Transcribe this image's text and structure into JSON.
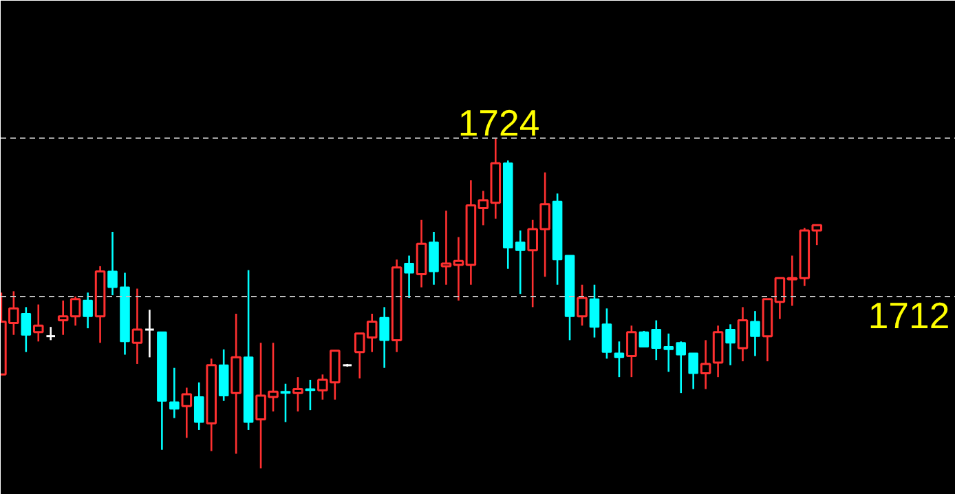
{
  "chart_data": {
    "type": "candlestick",
    "categories": [
      null,
      null,
      null,
      null,
      null,
      null,
      null,
      null,
      null,
      null,
      null,
      null,
      null,
      null,
      null,
      null,
      null,
      null,
      null,
      null,
      null,
      null,
      null,
      null,
      null,
      null,
      null,
      null,
      null,
      null,
      null,
      null,
      null,
      null,
      null,
      null,
      null,
      null,
      null,
      null,
      null,
      null,
      null,
      null,
      null,
      null,
      null,
      null,
      null,
      null,
      null,
      null,
      null,
      null,
      null,
      null,
      null,
      null,
      null,
      null,
      null,
      null,
      null,
      null,
      null,
      null,
      null
    ],
    "ohlc": [
      [
        1706.1,
        1712.3,
        1706.1,
        1710.1
      ],
      [
        1710.0,
        1712.4,
        1709.1,
        1711.1
      ],
      [
        1710.7,
        1711.2,
        1707.8,
        1709.1
      ],
      [
        1709.3,
        1711.4,
        1708.6,
        1709.8
      ],
      [
        1709.0,
        1709.7,
        1708.7,
        1709.0
      ],
      [
        1710.2,
        1711.7,
        1709.1,
        1710.5
      ],
      [
        1710.5,
        1712.0,
        1709.8,
        1711.8
      ],
      [
        1711.7,
        1712.3,
        1709.6,
        1710.5
      ],
      [
        1710.5,
        1714.3,
        1708.5,
        1713.9
      ],
      [
        1713.9,
        1716.9,
        1712.1,
        1712.7
      ],
      [
        1712.7,
        1713.8,
        1707.6,
        1708.6
      ],
      [
        1708.5,
        1712.6,
        1706.9,
        1709.5
      ],
      [
        1709.5,
        1711.0,
        1707.4,
        1709.5
      ],
      [
        1709.3,
        1709.3,
        1700.4,
        1704.1
      ],
      [
        1704.0,
        1706.6,
        1702.8,
        1703.5
      ],
      [
        1703.7,
        1705.1,
        1701.3,
        1704.6
      ],
      [
        1704.4,
        1705.5,
        1701.9,
        1702.5
      ],
      [
        1702.4,
        1707.3,
        1700.3,
        1706.8
      ],
      [
        1706.8,
        1708.0,
        1704.1,
        1704.5
      ],
      [
        1704.7,
        1710.7,
        1700.1,
        1707.4
      ],
      [
        1707.4,
        1714.0,
        1701.9,
        1702.5
      ],
      [
        1702.7,
        1708.5,
        1699.0,
        1704.5
      ],
      [
        1704.4,
        1708.5,
        1703.3,
        1704.8
      ],
      [
        1704.8,
        1705.4,
        1702.5,
        1704.7
      ],
      [
        1704.7,
        1705.9,
        1703.3,
        1705.0
      ],
      [
        1705.0,
        1705.7,
        1703.4,
        1704.9
      ],
      [
        1704.9,
        1706.1,
        1704.2,
        1705.7
      ],
      [
        1705.5,
        1707.9,
        1704.2,
        1707.9
      ],
      [
        1706.8,
        1706.9,
        1706.7,
        1706.8
      ],
      [
        1707.8,
        1709.2,
        1705.8,
        1709.2
      ],
      [
        1708.9,
        1710.7,
        1707.8,
        1710.1
      ],
      [
        1710.4,
        1711.2,
        1706.6,
        1708.7
      ],
      [
        1708.7,
        1714.8,
        1707.8,
        1714.2
      ],
      [
        1714.5,
        1715.1,
        1711.9,
        1713.8
      ],
      [
        1713.7,
        1717.8,
        1712.7,
        1716.0
      ],
      [
        1716.1,
        1716.9,
        1712.9,
        1713.9
      ],
      [
        1714.3,
        1718.5,
        1712.9,
        1714.5
      ],
      [
        1714.4,
        1716.5,
        1711.7,
        1714.7
      ],
      [
        1714.4,
        1720.8,
        1712.9,
        1718.9
      ],
      [
        1718.7,
        1720.0,
        1717.4,
        1719.3
      ],
      [
        1719.1,
        1724.0,
        1717.9,
        1722.1
      ],
      [
        1722.1,
        1722.3,
        1714.1,
        1715.7
      ],
      [
        1716.1,
        1717.0,
        1712.2,
        1715.5
      ],
      [
        1715.5,
        1717.8,
        1711.2,
        1717.1
      ],
      [
        1717.1,
        1721.4,
        1713.5,
        1719.0
      ],
      [
        1719.2,
        1719.8,
        1712.9,
        1714.8
      ],
      [
        1715.1,
        1715.1,
        1708.7,
        1710.5
      ],
      [
        1710.5,
        1712.9,
        1709.8,
        1711.9
      ],
      [
        1711.8,
        1712.9,
        1708.9,
        1709.7
      ],
      [
        1709.9,
        1711.1,
        1707.3,
        1707.8
      ],
      [
        1707.7,
        1708.6,
        1705.9,
        1707.4
      ],
      [
        1707.5,
        1709.8,
        1705.9,
        1709.3
      ],
      [
        1709.3,
        1709.4,
        1708.2,
        1708.2
      ],
      [
        1709.5,
        1710.2,
        1707.2,
        1708.1
      ],
      [
        1708.2,
        1709.2,
        1706.3,
        1708.0
      ],
      [
        1708.5,
        1708.6,
        1704.7,
        1707.6
      ],
      [
        1707.7,
        1707.7,
        1705.0,
        1706.2
      ],
      [
        1706.2,
        1708.7,
        1705.0,
        1706.9
      ],
      [
        1707.0,
        1709.8,
        1705.9,
        1709.3
      ],
      [
        1709.5,
        1709.9,
        1706.8,
        1708.5
      ],
      [
        1708.1,
        1711.2,
        1707.1,
        1710.2
      ],
      [
        1710.1,
        1710.9,
        1707.5,
        1709.0
      ],
      [
        1709.0,
        1711.8,
        1707.1,
        1711.8
      ],
      [
        1711.6,
        1713.4,
        1710.3,
        1713.4
      ],
      [
        1713.3,
        1715.1,
        1711.3,
        1713.4
      ],
      [
        1713.4,
        1717.2,
        1712.8,
        1717.0
      ],
      [
        1717.0,
        1717.4,
        1715.9,
        1717.4
      ]
    ],
    "colors": [
      "#ff3030",
      "#ff3030",
      "#00ffff",
      "#ff3030",
      "#ffffff",
      "#ff3030",
      "#ff3030",
      "#00ffff",
      "#ff3030",
      "#00ffff",
      "#00ffff",
      "#ff3030",
      "#ffffff",
      "#00ffff",
      "#00ffff",
      "#ff3030",
      "#00ffff",
      "#ff3030",
      "#00ffff",
      "#ff3030",
      "#00ffff",
      "#ff3030",
      "#ff3030",
      "#00ffff",
      "#ff3030",
      "#00ffff",
      "#ff3030",
      "#ff3030",
      "#ffffff",
      "#ff3030",
      "#ff3030",
      "#00ffff",
      "#ff3030",
      "#00ffff",
      "#ff3030",
      "#00ffff",
      "#ff3030",
      "#ff3030",
      "#ff3030",
      "#ff3030",
      "#ff3030",
      "#00ffff",
      "#00ffff",
      "#ff3030",
      "#ff3030",
      "#00ffff",
      "#00ffff",
      "#ff3030",
      "#00ffff",
      "#00ffff",
      "#00ffff",
      "#ff3030",
      "#00ffff",
      "#00ffff",
      "#00ffff",
      "#00ffff",
      "#00ffff",
      "#ff3030",
      "#ff3030",
      "#00ffff",
      "#ff3030",
      "#00ffff",
      "#ff3030",
      "#ff3030",
      "#ff3030",
      "#ff3030",
      "#ff3030"
    ],
    "ylim": [
      1697.0,
      1734.4
    ],
    "tick_labels": false,
    "grid": false,
    "ref_lines": [
      {
        "axis": "y",
        "value": 1724,
        "label": "1724",
        "color": "#bfbfbf",
        "line_style": "dashed"
      },
      {
        "axis": "y",
        "value": 1712,
        "label": "1712",
        "color": "#bfbfbf",
        "line_style": "dashed"
      }
    ]
  }
}
